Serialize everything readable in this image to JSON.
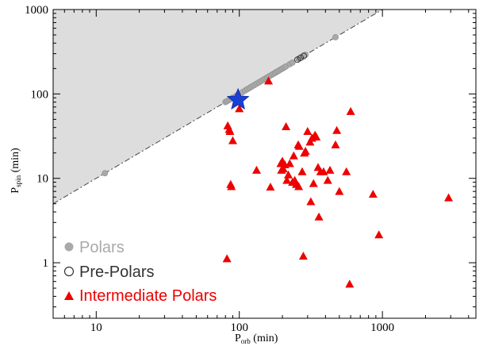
{
  "chart_data": {
    "type": "scatter",
    "xscale": "log",
    "yscale": "log",
    "xlim": [
      5,
      4500
    ],
    "ylim": [
      0.22,
      1000
    ],
    "xticks": [
      {
        "value": 10,
        "label": "10"
      },
      {
        "value": 100,
        "label": "100"
      },
      {
        "value": 1000,
        "label": "1000"
      }
    ],
    "yticks": [
      {
        "value": 1,
        "label": "1"
      },
      {
        "value": 10,
        "label": "10"
      },
      {
        "value": 100,
        "label": "100"
      },
      {
        "value": 1000,
        "label": "1000"
      }
    ],
    "xlabel": {
      "main": "P",
      "sub": "orb",
      "unit": " (min)"
    },
    "ylabel": {
      "main": "P",
      "sub": "spin",
      "unit": " (min)"
    },
    "shaded_region": "Pspin > Porb (light gray)",
    "reference_line": {
      "style": "dash-dot",
      "relation": "Pspin = Porb"
    },
    "colors": {
      "polars": "#a9a9a9",
      "pre_polars": "#333333",
      "intermediate_polars": "#ee0000",
      "star": "#1a3fd6",
      "shade": "#dddddd"
    },
    "legend": {
      "position": "bottom-left",
      "entries": [
        {
          "label": "Polars",
          "marker": "filled-circle",
          "color": "#a9a9a9"
        },
        {
          "label": "Pre-Polars",
          "marker": "open-circle",
          "color": "#333333"
        },
        {
          "label": "Intermediate Polars",
          "marker": "filled-triangle",
          "color": "#ee0000"
        }
      ]
    },
    "series": [
      {
        "name": "Polars",
        "marker": "circle",
        "points": [
          [
            11.5,
            11.5
          ],
          [
            80,
            80
          ],
          [
            82,
            82
          ],
          [
            85,
            85
          ],
          [
            88,
            88
          ],
          [
            90,
            90
          ],
          [
            95,
            95
          ],
          [
            98,
            98
          ],
          [
            105,
            105
          ],
          [
            110,
            110
          ],
          [
            114,
            114
          ],
          [
            118,
            118
          ],
          [
            122,
            122
          ],
          [
            127,
            127
          ],
          [
            132,
            132
          ],
          [
            137,
            137
          ],
          [
            142,
            142
          ],
          [
            147,
            147
          ],
          [
            152,
            152
          ],
          [
            157,
            157
          ],
          [
            162,
            162
          ],
          [
            168,
            168
          ],
          [
            173,
            173
          ],
          [
            178,
            178
          ],
          [
            183,
            183
          ],
          [
            188,
            188
          ],
          [
            194,
            194
          ],
          [
            200,
            200
          ],
          [
            206,
            206
          ],
          [
            212,
            212
          ],
          [
            225,
            225
          ],
          [
            235,
            235
          ],
          [
            260,
            260
          ],
          [
            265,
            265
          ],
          [
            270,
            270
          ],
          [
            278,
            278
          ],
          [
            290,
            290
          ],
          [
            470,
            470
          ]
        ]
      },
      {
        "name": "Pre-Polars",
        "marker": "open-circle",
        "points": [
          [
            255,
            255
          ],
          [
            268,
            268
          ],
          [
            282,
            282
          ]
        ]
      },
      {
        "name": "Intermediate Polars",
        "marker": "triangle",
        "points": [
          [
            82,
            1.12
          ],
          [
            83,
            42.0
          ],
          [
            85,
            38.0
          ],
          [
            86,
            36.0
          ],
          [
            87,
            8.5
          ],
          [
            88,
            8.0
          ],
          [
            90,
            28.0
          ],
          [
            100,
            67.0
          ],
          [
            132,
            12.5
          ],
          [
            160,
            143.0
          ],
          [
            165,
            7.9
          ],
          [
            195,
            15.0
          ],
          [
            197,
            12.5
          ],
          [
            200,
            16.0
          ],
          [
            203,
            13.0
          ],
          [
            208,
            14.5
          ],
          [
            212,
            41.0
          ],
          [
            215,
            9.5
          ],
          [
            220,
            11.0
          ],
          [
            225,
            15.0
          ],
          [
            235,
            9.0
          ],
          [
            240,
            18.5
          ],
          [
            244,
            9.5
          ],
          [
            250,
            8.5
          ],
          [
            258,
            25.0
          ],
          [
            260,
            8.0
          ],
          [
            262,
            24.0
          ],
          [
            275,
            12.0
          ],
          [
            280,
            1.2
          ],
          [
            285,
            20.0
          ],
          [
            290,
            21.0
          ],
          [
            300,
            36.0
          ],
          [
            312,
            27.0
          ],
          [
            316,
            5.3
          ],
          [
            322,
            30.0
          ],
          [
            330,
            8.7
          ],
          [
            338,
            32.5
          ],
          [
            345,
            31.0
          ],
          [
            355,
            13.5
          ],
          [
            360,
            3.5
          ],
          [
            370,
            12.0
          ],
          [
            388,
            12.0
          ],
          [
            415,
            9.5
          ],
          [
            430,
            12.5
          ],
          [
            470,
            25.0
          ],
          [
            480,
            37.0
          ],
          [
            500,
            7.0
          ],
          [
            560,
            12.0
          ],
          [
            590,
            0.56
          ],
          [
            600,
            62.0
          ],
          [
            860,
            6.5
          ],
          [
            945,
            2.15
          ],
          [
            2900,
            5.9
          ]
        ]
      },
      {
        "name": "",
        "marker": "star",
        "points": [
          [
            98,
            85
          ]
        ]
      }
    ]
  }
}
